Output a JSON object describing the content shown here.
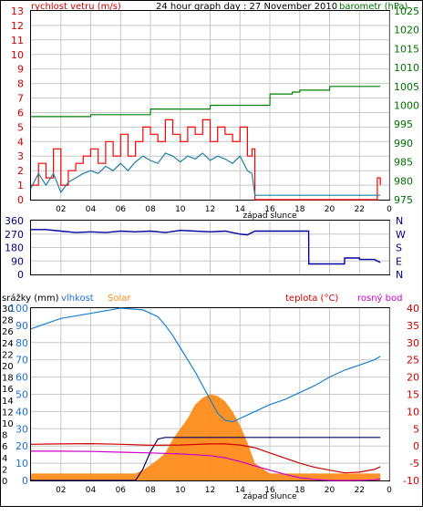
{
  "header": {
    "wind_label": "rychlost vetru (m/s)",
    "graph_title": "24 hour graph day : 27 November 2010",
    "baro_label": "barometr (hPa)"
  },
  "colors": {
    "wind": "#ff0000",
    "wind_avg": "#2080a0",
    "pressure": "#008000",
    "direction": "#0000a0",
    "humidity": "#1a7fd0",
    "solar": "#ff8c1a",
    "temperature": "#cc0000",
    "dew_point": "#cc00cc",
    "rain": "#000060",
    "grid": "#c8c8c8",
    "axis_blue": "#1f6fd0",
    "axis_red": "#cc0000",
    "axis_green": "#007000",
    "axis_navy": "#000080"
  },
  "chart_data": [
    {
      "type": "line",
      "title": "24 hour graph day : 27 November 2010",
      "x_ticks": [
        "02",
        "04",
        "06",
        "08",
        "10",
        "12",
        "14",
        "16",
        "18",
        "20",
        "22",
        "0"
      ],
      "x_annotation": "západ slunce",
      "y_left": {
        "label": "rychlost vetru (m/s)",
        "range": [
          0,
          13
        ],
        "ticks": [
          "0",
          "1",
          "2",
          "3",
          "4",
          "5",
          "6",
          "7",
          "8",
          "9",
          "10",
          "11",
          "12",
          "13"
        ]
      },
      "y_right": {
        "label": "barometr (hPa)",
        "range": [
          975,
          1025
        ],
        "ticks": [
          "975",
          "980",
          "985",
          "990",
          "995",
          "1000",
          "1005",
          "1010",
          "1015",
          "1020",
          "1025"
        ]
      },
      "series": [
        {
          "key": "wind_gust",
          "x": [
            0,
            0.5,
            1,
            1.5,
            2,
            2.5,
            3,
            3.5,
            4,
            4.5,
            5,
            5.5,
            6,
            6.5,
            7,
            7.5,
            8,
            8.5,
            9,
            9.5,
            10,
            10.5,
            11,
            11.5,
            12,
            12.5,
            13,
            13.5,
            14,
            14.5,
            14.8,
            15,
            15.5,
            16,
            17,
            18,
            19,
            20,
            21,
            22,
            22.5,
            23,
            23.2,
            23.4
          ],
          "y": [
            1,
            2.5,
            1.5,
            3.5,
            1,
            2,
            2.5,
            3,
            3.5,
            2.5,
            4,
            3,
            4.5,
            3,
            4,
            5,
            4.5,
            4,
            5.5,
            4.5,
            4,
            5,
            4.5,
            5.5,
            4,
            5,
            4.5,
            4,
            5,
            3,
            3.5,
            0,
            0,
            0,
            0,
            0,
            0,
            0,
            0,
            0,
            0,
            0,
            1.5,
            1
          ]
        },
        {
          "key": "wind_average",
          "x": [
            0,
            0.5,
            1,
            1.5,
            2,
            2.5,
            3,
            3.5,
            4,
            4.5,
            5,
            5.5,
            6,
            6.5,
            7,
            7.5,
            8,
            8.5,
            9,
            9.5,
            10,
            10.5,
            11,
            11.5,
            12,
            12.5,
            13,
            13.5,
            14,
            14.5,
            14.8,
            15,
            16,
            17,
            18,
            19,
            20,
            21,
            22,
            22.5,
            23,
            23.4
          ],
          "y": [
            0.8,
            1.8,
            1,
            1.8,
            0.5,
            1.2,
            1.5,
            1.8,
            2,
            1.8,
            2.3,
            2,
            2.5,
            2,
            2.6,
            3,
            2.7,
            2.5,
            3.2,
            3,
            2.6,
            3,
            2.8,
            3.2,
            2.7,
            3,
            2.8,
            2.5,
            3,
            2,
            1.8,
            0.3,
            0.3,
            0.3,
            0.3,
            0.3,
            0.3,
            0.3,
            0.3,
            0.3,
            0.3,
            0.3
          ]
        },
        {
          "key": "pressure",
          "x": [
            0,
            4,
            4.01,
            8,
            8.01,
            12,
            12.01,
            16,
            16.01,
            17.5,
            17.51,
            18,
            18.01,
            20,
            20.01,
            23.4
          ],
          "y": [
            997,
            997,
            997.5,
            997.5,
            999,
            999,
            1000,
            1000,
            1003,
            1003,
            1003.5,
            1003.5,
            1004,
            1004,
            1005,
            1005
          ]
        }
      ]
    },
    {
      "type": "line",
      "y_left": {
        "range": [
          0,
          360
        ],
        "ticks": [
          "0",
          "90",
          "180",
          "270",
          "360"
        ]
      },
      "y_right_ticks": [
        "N",
        "W",
        "S",
        "E",
        "N"
      ],
      "series": [
        {
          "key": "wind_direction",
          "x": [
            0,
            1,
            2,
            3,
            4,
            5,
            6,
            7,
            8,
            9,
            10,
            11,
            12,
            13,
            14,
            14.5,
            15,
            16,
            17,
            18,
            18.6,
            18.61,
            21,
            21.01,
            22,
            22.01,
            23,
            23.4
          ],
          "y": [
            300,
            300,
            290,
            280,
            285,
            280,
            290,
            285,
            290,
            280,
            295,
            290,
            285,
            290,
            270,
            265,
            290,
            290,
            290,
            290,
            290,
            70,
            70,
            110,
            110,
            100,
            100,
            80
          ]
        }
      ]
    },
    {
      "type": "line",
      "header_labels": [
        "srážky (mm)",
        "vlhkost",
        "Solar",
        "teplota (°C)",
        "rosný bod"
      ],
      "x_ticks": [
        "02",
        "04",
        "06",
        "08",
        "10",
        "12",
        "14",
        "16",
        "18",
        "20",
        "22",
        "0"
      ],
      "x_annotation": "západ slunce",
      "y_left_rain": {
        "ticks": [
          "0",
          "2",
          "4",
          "6",
          "8",
          "10",
          "12",
          "14",
          "16",
          "18",
          "20",
          "22",
          "24",
          "26",
          "28",
          "30"
        ]
      },
      "y_left_humidity": {
        "range": [
          0,
          100
        ],
        "ticks": [
          "0",
          "10",
          "20",
          "30",
          "40",
          "50",
          "60",
          "70",
          "80",
          "90",
          "100"
        ]
      },
      "y_right_temp": {
        "range": [
          -10,
          40
        ],
        "ticks": [
          "-10",
          "-5",
          "0",
          "5",
          "10",
          "15",
          "20",
          "25",
          "30",
          "35",
          "40"
        ]
      },
      "humidity_series": {
        "x": [
          0,
          2,
          4,
          6,
          7.5,
          8.5,
          9,
          9.5,
          10,
          10.5,
          11,
          11.5,
          12,
          12.5,
          13,
          13.5,
          14,
          14.5,
          15,
          16,
          17,
          18,
          19,
          20,
          21,
          22,
          23,
          23.4
        ],
        "y": [
          88,
          94,
          97,
          100,
          99,
          95,
          90,
          84,
          77,
          70,
          63,
          55,
          47,
          39,
          35,
          34,
          36,
          38,
          40,
          44,
          47,
          51,
          55,
          60,
          64,
          67,
          70,
          72
        ]
      },
      "solar_series": {
        "x": [
          0,
          4,
          7,
          7.5,
          8,
          8.5,
          9,
          9.5,
          10,
          10.5,
          11,
          11.5,
          12,
          12.5,
          13,
          13.5,
          14,
          14.5,
          15,
          16,
          20,
          23.4
        ],
        "y": [
          4,
          4,
          4,
          6,
          9,
          12,
          16,
          24,
          30,
          36,
          44,
          48,
          50,
          49,
          46,
          40,
          32,
          22,
          10,
          4,
          4,
          4
        ]
      },
      "temperature_series": {
        "x": [
          0,
          2,
          4,
          6,
          8,
          10,
          12,
          13,
          14,
          15,
          16,
          17,
          18,
          19,
          20,
          21,
          22,
          23,
          23.4
        ],
        "y": [
          0.5,
          0.6,
          0.7,
          0.5,
          0.2,
          0.3,
          0.6,
          0.6,
          0.3,
          -0.5,
          -2,
          -3.5,
          -5,
          -6.2,
          -7,
          -7.8,
          -7.6,
          -6.8,
          -6
        ]
      },
      "dew_point_series": {
        "x": [
          0,
          2,
          4,
          6,
          8,
          10,
          12,
          13,
          14,
          15,
          16,
          17,
          18,
          19,
          20,
          21,
          22,
          23,
          23.4
        ],
        "y": [
          -1.5,
          -1.5,
          -1.6,
          -1.8,
          -2,
          -2.3,
          -2.8,
          -3.4,
          -4.5,
          -5.8,
          -7,
          -8.2,
          -9.2,
          -9.7,
          -10,
          -10,
          -10,
          -9.8,
          -9.6
        ]
      },
      "rain_series": {
        "x": [
          0,
          7,
          7.5,
          8,
          8.5,
          9,
          10,
          11,
          12,
          13,
          14,
          15,
          16,
          20,
          23.4
        ],
        "y": [
          0,
          0,
          2,
          5,
          7.2,
          7.5,
          7.5,
          7.5,
          7.5,
          7.5,
          7.5,
          7.5,
          7.5,
          7.5,
          7.5
        ]
      }
    }
  ]
}
